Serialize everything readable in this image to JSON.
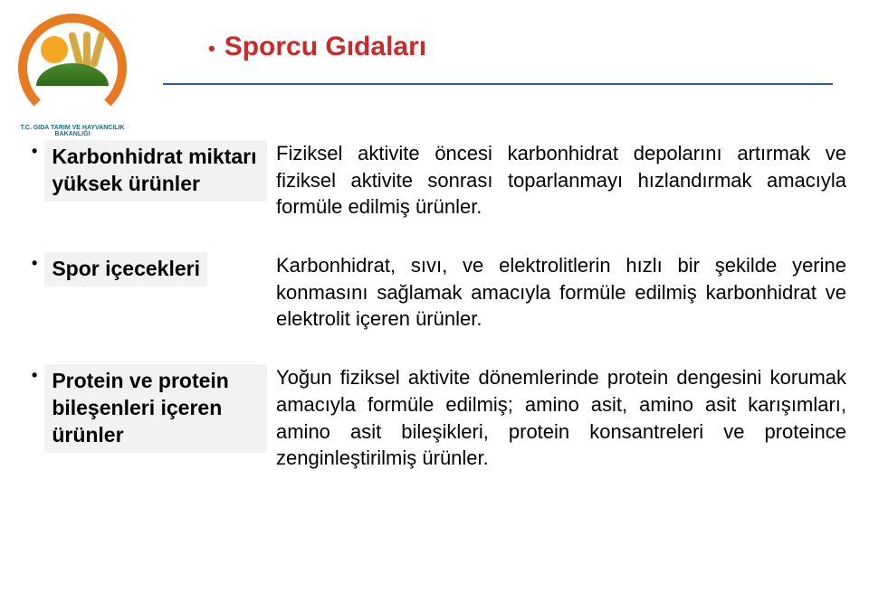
{
  "logo_text": "T.C.\nGIDA TARIM VE HAYVANCILIK\nBAKANLIĞI",
  "title": "Sporcu Gıdaları",
  "rows": [
    {
      "label": "Karbonhidrat miktarı yüksek ürünler",
      "desc": "Fiziksel aktivite öncesi karbonhidrat depolarını artırmak ve fiziksel aktivite sonrası toparlanmayı hızlandırmak amacıyla formüle edilmiş ürünler."
    },
    {
      "label": "Spor içecekleri",
      "desc": "Karbonhidrat, sıvı, ve elektrolitlerin hızlı bir şekilde yerine konmasını sağlamak amacıyla formüle edilmiş karbonhidrat ve elektrolit içeren ürünler."
    },
    {
      "label": "Protein ve protein bileşenleri içeren ürünler",
      "desc": "Yoğun fiziksel aktivite dönemlerinde protein dengesini korumak amacıyla formüle edilmiş; amino asit, amino asit karışımları, amino asit bileşikleri, protein konsantreleri ve proteince zenginleştirilmiş ürünler."
    }
  ]
}
